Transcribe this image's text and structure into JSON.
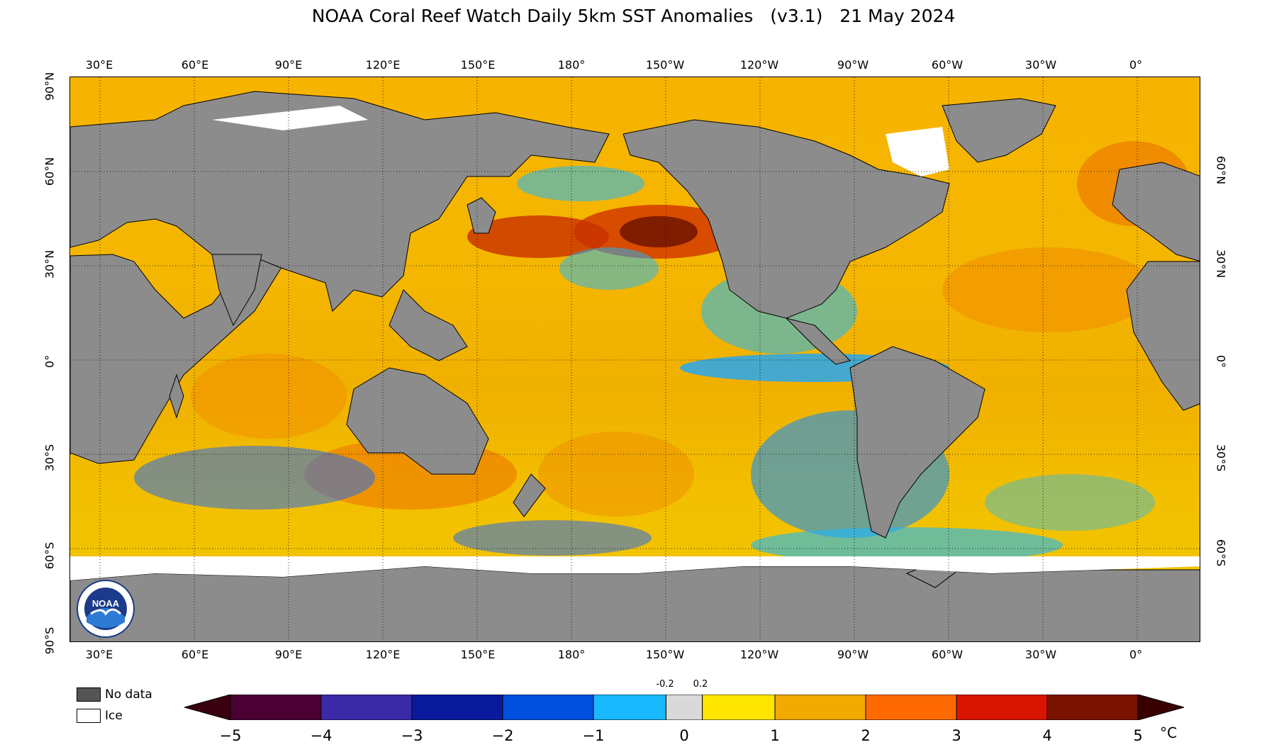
{
  "header": {
    "title": "NOAA Coral Reef Watch Daily 5km SST Anomalies",
    "version": "(v3.1)",
    "date": "21 May 2024"
  },
  "map": {
    "lon_labels": [
      "30°E",
      "60°E",
      "90°E",
      "120°E",
      "150°E",
      "180°",
      "150°W",
      "120°W",
      "90°W",
      "60°W",
      "30°W",
      "0°"
    ],
    "lat_labels_left": [
      "90°N",
      "60°N",
      "30°N",
      "0°",
      "30°S",
      "60°S",
      "90°S"
    ],
    "lat_labels_right": [
      "60°N",
      "30°N",
      "0°",
      "30°S",
      "60°S"
    ],
    "colors": {
      "land": "#8c8c8c",
      "no_data": "#555555",
      "ice": "#ffffff",
      "neutral": "#d9d9d9"
    }
  },
  "legend": {
    "no_data_label": "No data",
    "ice_label": "Ice"
  },
  "colorbar": {
    "ticks": [
      "−5",
      "−4",
      "−3",
      "−2",
      "−1",
      "0",
      "1",
      "2",
      "3",
      "4",
      "5"
    ],
    "small_ticks": [
      "-0.2",
      "0.2"
    ],
    "unit": "°C",
    "colors": [
      "#4a0033",
      "#7a0a6e",
      "#3a2aa8",
      "#0a1a9c",
      "#0050e0",
      "#19b8ff",
      "#d9d9d9",
      "#ffe600",
      "#f2a900",
      "#ff6a00",
      "#d91400",
      "#7a1200",
      "#3a0000"
    ]
  },
  "logo": {
    "name": "noaa-logo",
    "text": "NOAA"
  }
}
